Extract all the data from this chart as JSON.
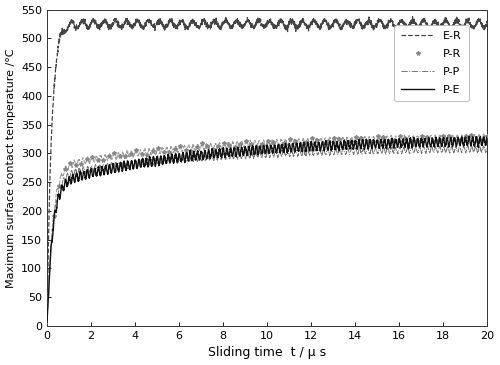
{
  "title": "",
  "xlabel": "Sliding time  t / μ s",
  "ylabel": "Maximum surface contact temperature /°C",
  "xlim": [
    0,
    20
  ],
  "ylim": [
    0,
    550
  ],
  "xticks": [
    0,
    2,
    4,
    6,
    8,
    10,
    12,
    14,
    16,
    18,
    20
  ],
  "yticks": [
    0,
    50,
    100,
    150,
    200,
    250,
    300,
    350,
    400,
    450,
    500,
    550
  ],
  "background_color": "#ffffff",
  "seed": 123,
  "er_plateau": 525,
  "er_rise_rate": 5.0,
  "er_noise_amp": 6,
  "er_noise_freq": 2.0,
  "pr_plateau": 275,
  "pr_rise_rate": 4.0,
  "pr_slow_gain": 55,
  "pr_noise_amp": 5,
  "pr_noise_freq": 5.0,
  "pp_plateau": 260,
  "pp_rise_rate": 4.0,
  "pp_slow_gain": 50,
  "pp_noise_amp": 5,
  "pp_noise_freq": 5.5,
  "pe_plateau": 245,
  "pe_rise_rate": 4.2,
  "pe_slow_gain": 80,
  "pe_noise_amp": 7,
  "pe_noise_freq": 6.0,
  "legend_fontsize": 8,
  "tick_fontsize": 8,
  "ylabel_fontsize": 8,
  "xlabel_fontsize": 9
}
